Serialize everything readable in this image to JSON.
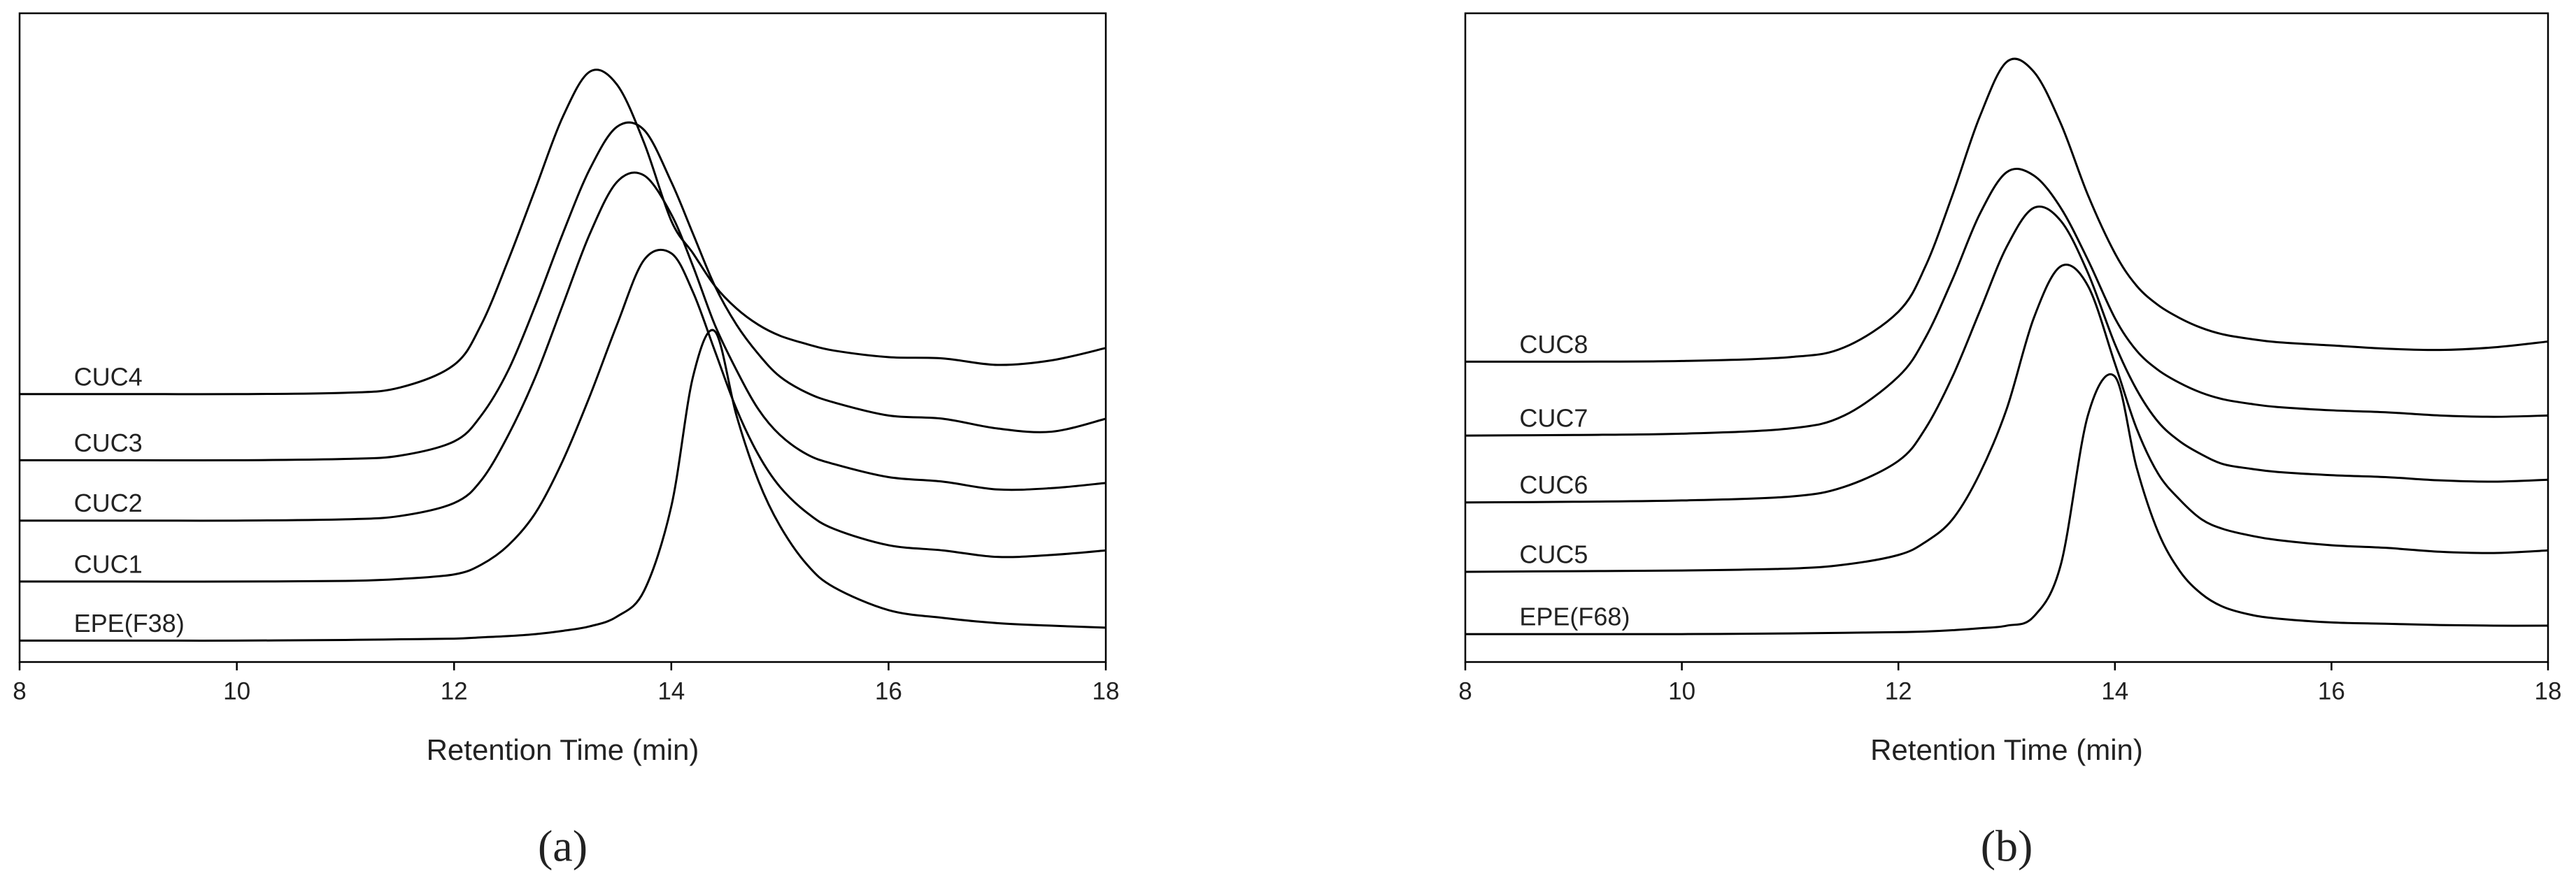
{
  "chart_data": [
    {
      "type": "line",
      "caption": "(a)",
      "x_label": "Retention Time (min)",
      "xlim": [
        8,
        18
      ],
      "xticks": [
        8,
        10,
        12,
        14,
        16,
        18
      ],
      "ylim": [
        0,
        100
      ],
      "color": "#000000",
      "x": [
        8,
        9,
        10,
        11,
        11.5,
        12,
        12.25,
        12.5,
        12.75,
        13,
        13.25,
        13.5,
        13.75,
        14,
        14.2,
        14.4,
        14.6,
        14.8,
        15,
        15.25,
        15.5,
        16,
        16.5,
        17,
        17.5,
        18
      ],
      "series": [
        {
          "name": "CUC4",
          "values": [
            41.3,
            41.3,
            41.3,
            41.5,
            42.3,
            45.8,
            52,
            62,
            73,
            84,
            91,
            89,
            80,
            68,
            63,
            58,
            54.5,
            52,
            50.3,
            49,
            48,
            47,
            46.8,
            45.8,
            46.5,
            48.4
          ]
        },
        {
          "name": "CUC3",
          "values": [
            31.1,
            31.1,
            31.1,
            31.3,
            31.8,
            34,
            38,
            45,
            55,
            66,
            76,
            82.5,
            82,
            74,
            66,
            58,
            52,
            47.5,
            44,
            41.5,
            40,
            38,
            37.5,
            36,
            35.5,
            37.5
          ]
        },
        {
          "name": "CUC2",
          "values": [
            21.8,
            21.8,
            21.8,
            22,
            22.5,
            24.5,
            28,
            35,
            44,
            55,
            66,
            74,
            75,
            69,
            61,
            52,
            45,
            39,
            35,
            32,
            30.5,
            28.5,
            27.8,
            26.6,
            26.8,
            27.6
          ]
        },
        {
          "name": "CUC1",
          "values": [
            12.4,
            12.4,
            12.4,
            12.5,
            12.8,
            13.5,
            15,
            18,
            23,
            31,
            41,
            52,
            62,
            63,
            57,
            48,
            39,
            32,
            27,
            23,
            20.5,
            18,
            17.2,
            16.2,
            16.5,
            17.2
          ]
        },
        {
          "name": "EPE(F38)",
          "values": [
            3.3,
            3.3,
            3.3,
            3.4,
            3.5,
            3.6,
            3.8,
            4,
            4.3,
            4.8,
            5.5,
            7,
            11,
            24,
            44,
            51,
            38,
            28,
            21,
            15,
            11.5,
            8,
            6.8,
            6,
            5.6,
            5.3
          ]
        }
      ]
    },
    {
      "type": "line",
      "caption": "(b)",
      "x_label": "Retention Time (min)",
      "xlim": [
        8,
        18
      ],
      "xticks": [
        8,
        10,
        12,
        14,
        16,
        18
      ],
      "ylim": [
        0,
        100
      ],
      "color": "#000000",
      "x": [
        8,
        9,
        10,
        11,
        11.5,
        12,
        12.25,
        12.5,
        12.75,
        13,
        13.25,
        13.5,
        13.75,
        14,
        14.2,
        14.4,
        14.6,
        14.8,
        15,
        15.25,
        15.5,
        16,
        16.5,
        17,
        17.5,
        18
      ],
      "series": [
        {
          "name": "CUC8",
          "values": [
            46.3,
            46.3,
            46.4,
            47,
            48.5,
            54,
            61,
            72,
            84,
            92.5,
            91,
            83,
            72,
            63,
            58,
            55,
            53,
            51.5,
            50.5,
            49.8,
            49.3,
            48.8,
            48.3,
            48.1,
            48.5,
            49.4
          ]
        },
        {
          "name": "CUC7",
          "values": [
            34.9,
            35,
            35.2,
            36,
            38,
            44,
            50,
            59,
            69,
            75.5,
            75,
            70,
            62,
            53,
            48,
            45,
            43,
            41.5,
            40.5,
            39.8,
            39.3,
            38.8,
            38.5,
            38,
            37.8,
            38
          ]
        },
        {
          "name": "CUC6",
          "values": [
            24.6,
            24.7,
            24.9,
            25.5,
            27,
            31,
            36,
            44,
            54,
            64,
            70,
            68,
            60,
            49,
            42,
            37,
            34,
            32,
            30.5,
            29.8,
            29.3,
            28.8,
            28.5,
            28,
            27.8,
            28.1
          ]
        },
        {
          "name": "CUC5",
          "values": [
            13.9,
            14,
            14.1,
            14.4,
            15,
            16.5,
            18.5,
            22,
            29,
            39,
            53,
            61,
            58,
            46,
            36,
            29,
            25,
            22,
            20.5,
            19.5,
            18.8,
            18,
            17.6,
            17,
            16.8,
            17.2
          ]
        },
        {
          "name": "EPE(F68)",
          "values": [
            4.3,
            4.3,
            4.3,
            4.4,
            4.5,
            4.6,
            4.7,
            4.9,
            5.2,
            5.6,
            7,
            15,
            38,
            44,
            30,
            20,
            14,
            10.5,
            8.5,
            7.3,
            6.7,
            6.1,
            5.9,
            5.7,
            5.6,
            5.6
          ]
        }
      ]
    }
  ]
}
